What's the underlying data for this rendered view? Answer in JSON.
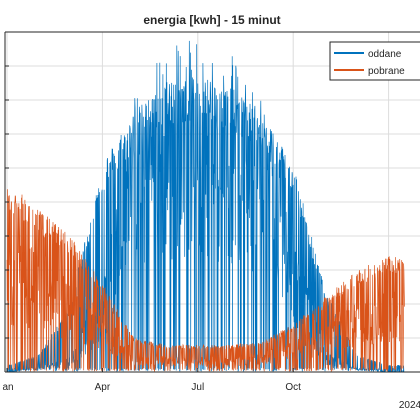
{
  "chart_data": {
    "type": "line",
    "title": "energia [kwh]  - 15 minut",
    "xlabel": "",
    "ylabel": "",
    "x_tick_labels": [
      "an",
      "Apr",
      "Jul",
      "Oct",
      "2024"
    ],
    "grid": true,
    "legend_placement": "top-right",
    "series": [
      {
        "name": "oddane",
        "color": "#0072BD",
        "envelope": {
          "months": [
            0,
            1,
            2,
            3,
            4,
            5,
            6,
            7,
            8,
            9,
            10,
            11,
            12
          ],
          "peak": [
            0.02,
            0.05,
            0.2,
            0.62,
            0.77,
            0.85,
            0.87,
            0.84,
            0.77,
            0.62,
            0.24,
            0.05,
            0.02
          ],
          "typical": [
            0.0,
            0.01,
            0.03,
            0.18,
            0.55,
            0.65,
            0.66,
            0.63,
            0.55,
            0.28,
            0.04,
            0.01,
            0.0
          ]
        }
      },
      {
        "name": "pobrane",
        "color": "#D95319",
        "envelope": {
          "months": [
            0,
            1,
            2,
            3,
            4,
            5,
            6,
            7,
            8,
            9,
            10,
            11,
            12
          ],
          "peak": [
            0.56,
            0.48,
            0.4,
            0.26,
            0.1,
            0.08,
            0.08,
            0.08,
            0.09,
            0.14,
            0.22,
            0.3,
            0.34
          ],
          "typical": [
            0.28,
            0.24,
            0.18,
            0.12,
            0.04,
            0.03,
            0.03,
            0.03,
            0.04,
            0.06,
            0.1,
            0.14,
            0.16
          ]
        }
      }
    ]
  }
}
